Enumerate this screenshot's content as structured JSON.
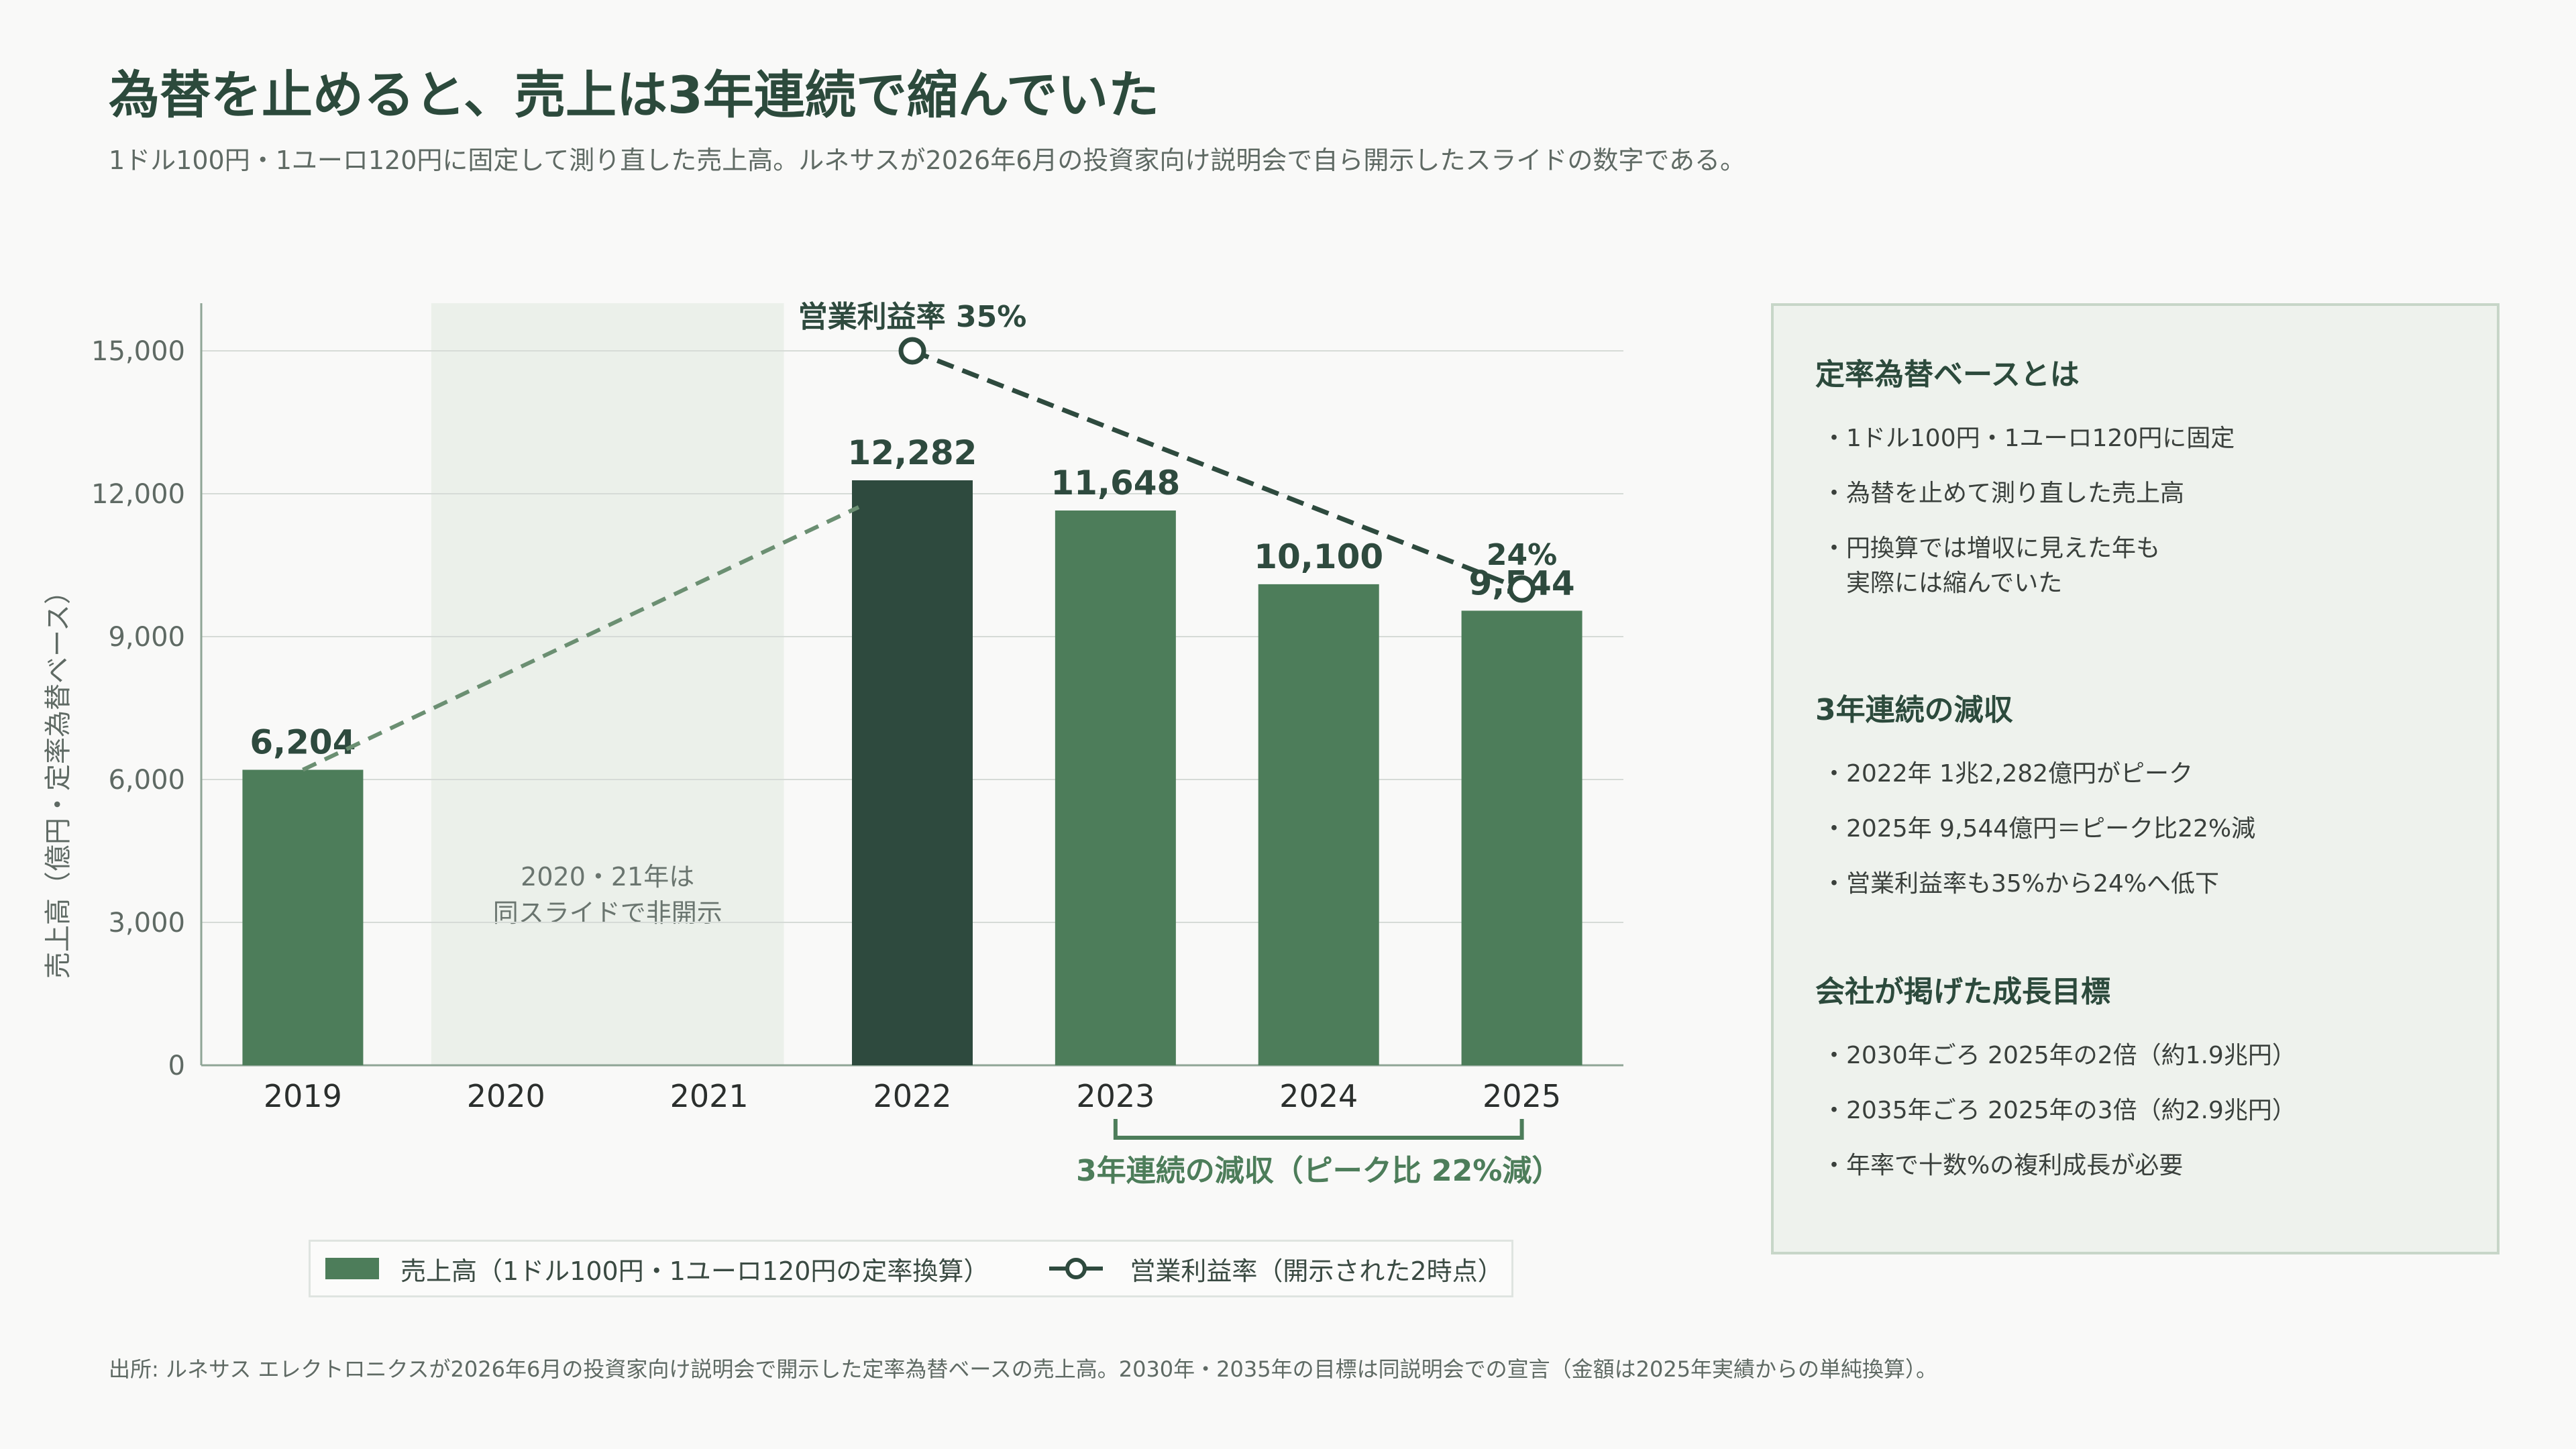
{
  "header": {
    "title": "為替を止めると、売上は3年連続で縮んでいた",
    "subtitle": "1ドル100円・1ユーロ120円に固定して測り直した売上高。ルネサスが2026年6月の投資家向け説明会で自ら開示したスライドの数字である。"
  },
  "colors": {
    "bar": "#4d7d5a",
    "bar_peak": "#2e4a3e",
    "shade": "#ebf0ea",
    "grid": "#d6dbd7",
    "line_dark": "#2e4a3e",
    "line_light": "#6b8f72"
  },
  "chart_data": {
    "type": "bar",
    "categories": [
      "2019",
      "2020",
      "2021",
      "2022",
      "2023",
      "2024",
      "2025"
    ],
    "series": [
      {
        "name": "売上高（1ドル100円・1ユーロ120円の定率換算）",
        "values": [
          6204,
          null,
          null,
          12282,
          11648,
          10100,
          9544
        ]
      }
    ],
    "data_labels": [
      "6,204",
      "",
      "",
      "12,282",
      "11,648",
      "10,100",
      "9,544"
    ],
    "peak_category": "2022",
    "ylabel": "売上高（億円・定率為替ベース）",
    "ylim": [
      0,
      16000
    ],
    "yticks": [
      0,
      3000,
      6000,
      9000,
      12000,
      15000
    ],
    "ytick_labels": [
      "0",
      "3,000",
      "6,000",
      "9,000",
      "12,000",
      "15,000"
    ],
    "grid": true,
    "shaded_region": {
      "categories": [
        "2020",
        "2021"
      ],
      "label_line1": "2020・21年は",
      "label_line2": "同スライドで非開示"
    },
    "overlay_line": {
      "name": "営業利益率（開示された2時点）",
      "points": [
        {
          "x": "2022",
          "value": 35,
          "label": "営業利益率 35%"
        },
        {
          "x": "2025",
          "value": 24,
          "label": "24%"
        }
      ]
    },
    "bracket": {
      "from": "2023",
      "to": "2025",
      "label": "3年連続の減収（ピーク比 22%減）"
    }
  },
  "legend": {
    "bar_label": "売上高（1ドル100円・1ユーロ120円の定率換算）",
    "line_label": "営業利益率（開示された2時点）"
  },
  "side": {
    "section1": {
      "heading": "定率為替ベースとは",
      "items": [
        "・1ドル100円・1ユーロ120円に固定",
        "・為替を止めて測り直した売上高",
        "・円換算では増収に見えた年も\n　実際には縮んでいた"
      ]
    },
    "section2": {
      "heading": "3年連続の減収",
      "items": [
        "・2022年 1兆2,282億円がピーク",
        "・2025年 9,544億円＝ピーク比22%減",
        "・営業利益率も35%から24%へ低下"
      ]
    },
    "section3": {
      "heading": "会社が掲げた成長目標",
      "items": [
        "・2030年ごろ 2025年の2倍（約1.9兆円）",
        "・2035年ごろ 2025年の3倍（約2.9兆円）",
        "・年率で十数%の複利成長が必要"
      ]
    }
  },
  "footnote": "出所: ルネサス エレクトロニクスが2026年6月の投資家向け説明会で開示した定率為替ベースの売上高。2030年・2035年の目標は同説明会での宣言（金額は2025年実績からの単純換算）。"
}
